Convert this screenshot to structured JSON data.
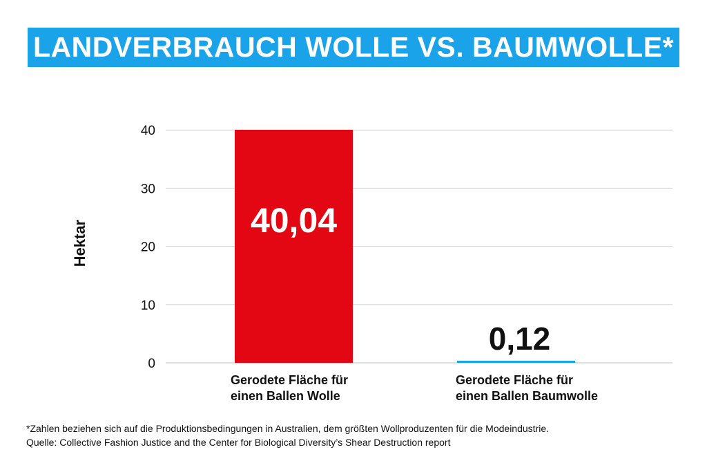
{
  "title": "LANDVERBRAUCH WOLLE VS. BAUMWOLLE*",
  "footnote": [
    "*Zahlen beziehen sich auf die Produktionsbedingungen in Australien, dem größten Wollproduzenten für die Modeindustrie.",
    " Quelle: Collective Fashion Justice and the Center for Biological Diversity’s Shear Destruction report"
  ],
  "colors": {
    "banner": "#1aa3e8",
    "wool": "#e30613",
    "cotton": "#1aa3e8"
  },
  "chart_data": {
    "type": "bar",
    "categories": [
      "Gerodete Fläche für\neinen Ballen Wolle",
      "Gerodete Fläche für\neinen Ballen Baumwolle"
    ],
    "values": [
      40.04,
      0.12
    ],
    "data_labels": [
      "40,04",
      "0,12"
    ],
    "colors": [
      "#e30613",
      "#1aa3e8"
    ],
    "ylabel": "Hektar",
    "yticks": [
      0,
      10,
      20,
      30,
      40
    ],
    "ylim": [
      0,
      44
    ],
    "grid": true
  }
}
